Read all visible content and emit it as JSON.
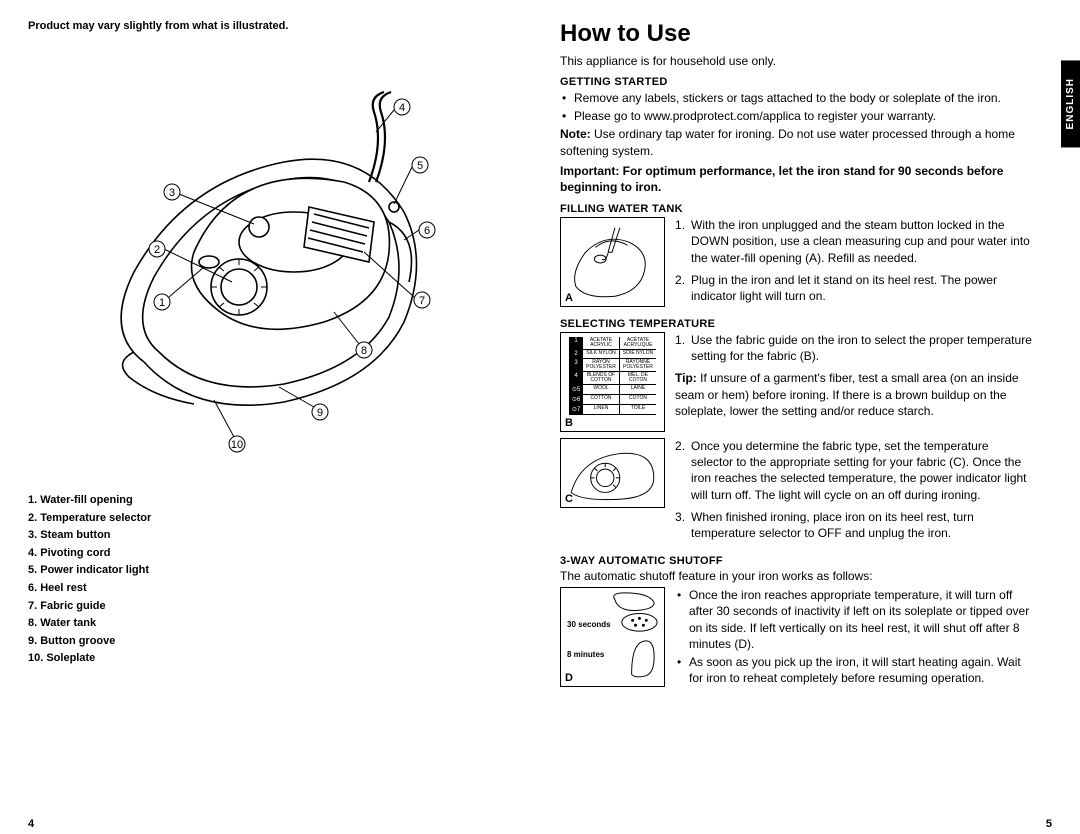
{
  "left": {
    "disclaimer": "Product may vary slightly from what is illustrated.",
    "callouts": [
      "1",
      "2",
      "3",
      "4",
      "5",
      "6",
      "7",
      "8",
      "9",
      "10"
    ],
    "parts": [
      "1.  Water-fill opening",
      "2.  Temperature selector",
      "3.  Steam button",
      "4.  Pivoting cord",
      "5.  Power indicator light",
      "6.  Heel rest",
      "7.  Fabric guide",
      "8.  Water tank",
      "9.  Button groove",
      "10. Soleplate"
    ],
    "pageNum": "4"
  },
  "right": {
    "title": "How to Use",
    "intro": "This appliance is for household use only.",
    "gettingStarted": {
      "heading": "GETTING STARTED",
      "bullets": [
        "Remove any labels, stickers or tags attached to the body or soleplate of the iron.",
        "Please go to www.prodprotect.com/applica to register your warranty."
      ],
      "noteLabel": "Note:",
      "noteText": " Use ordinary tap water for ironing. Do not use water processed through a home softening system.",
      "important": "Important: For optimum performance, let the iron stand for 90 seconds before beginning to iron."
    },
    "fillingWater": {
      "heading": "FILLING WATER TANK",
      "figLabel": "A",
      "steps": [
        "With the iron unplugged and the steam button locked in the DOWN position, use a clean measuring cup and pour water into the water-fill opening (A). Refill as needed.",
        "Plug in the iron and let it stand on its heel rest. The power indicator light will turn on."
      ]
    },
    "selectingTemp": {
      "heading": "SELECTING TEMPERATURE",
      "figLabelB": "B",
      "figLabelC": "C",
      "step1": "Use the fabric guide on the iron to select the proper temperature setting for the fabric (B).",
      "tipLabel": "Tip:",
      "tipText": " If unsure of a garment's fiber, test a small area (on an inside seam or hem) before ironing. If there is a brown buildup on the soleplate, lower the setting and/or reduce starch.",
      "step2": "Once you determine the fabric type, set the temperature selector to the appropriate setting for your fabric (C). Once the iron reaches the selected temperature, the power indicator light will turn off. The light will cycle on an off during ironing.",
      "step3": "When finished ironing, place iron on its heel rest, turn temperature selector to OFF and unplug the iron.",
      "fabricRows": [
        {
          "n": "1",
          "l": "ACETATE ACRYLIC",
          "r": "ACÉTATE ACRYLIQUE"
        },
        {
          "n": "2",
          "l": "SILK NYLON",
          "r": "SOIE NYLON"
        },
        {
          "n": "3",
          "l": "RAYON POLYESTER",
          "r": "RAYONNE POLYESTER"
        },
        {
          "n": "4",
          "l": "BLENDS OF COTTON",
          "r": "MÉL. DE COTON"
        },
        {
          "n": "⊙5",
          "l": "WOOL",
          "r": "LAINE"
        },
        {
          "n": "⊙6",
          "l": "COTTON",
          "r": "COTON"
        },
        {
          "n": "⊙7",
          "l": "LINEN",
          "r": "TOILE"
        }
      ]
    },
    "autoShutoff": {
      "heading": "3-WAY AUTOMATIC SHUTOFF",
      "intro": "The automatic shutoff feature in your iron works as follows:",
      "figLabel": "D",
      "label30": "30 seconds",
      "label8": "8 minutes",
      "bullets": [
        "Once the iron reaches appropriate temperature, it will turn off after 30 seconds of inactivity if left on its soleplate or tipped over on its side. If left vertically on its heel rest, it will shut off after 8 minutes (D).",
        "As soon as you pick up the iron, it will start heating again. Wait for iron to reheat completely before resuming operation."
      ]
    },
    "langTab": "ENGLISH",
    "pageNum": "5"
  },
  "colors": {
    "text": "#000000",
    "bg": "#ffffff",
    "tab_bg": "#000000",
    "tab_fg": "#ffffff"
  }
}
